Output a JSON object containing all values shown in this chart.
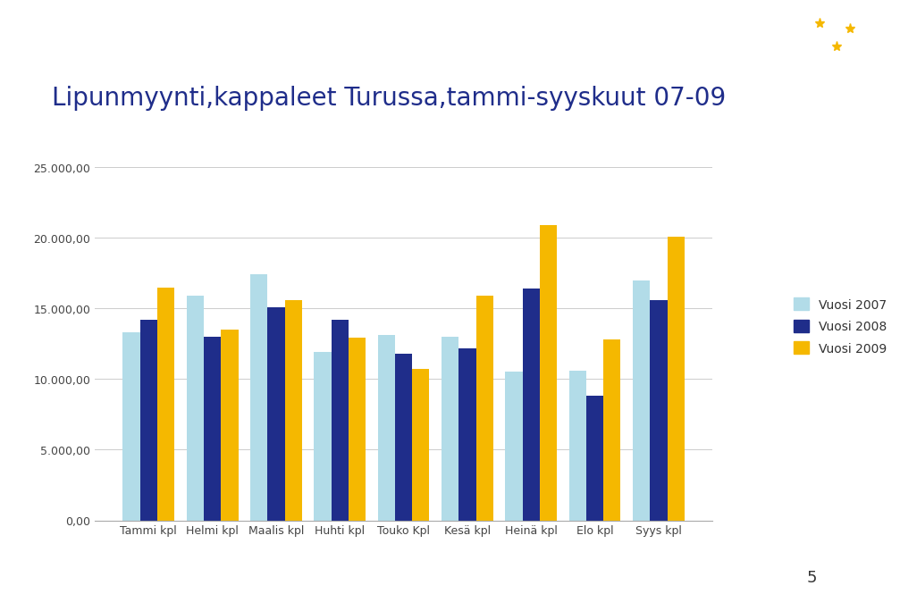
{
  "title": "Lipunmyynti,kappaleet Turussa,tammi-syyskuut 07-09",
  "categories": [
    "Tammi kpl",
    "Helmi kpl",
    "Maalis kpl",
    "Huhti kpl",
    "Touko Kpl",
    "Kesä kpl",
    "Heinä kpl",
    "Elo kpl",
    "Syys kpl"
  ],
  "vuosi2007": [
    13300,
    15900,
    17400,
    11900,
    13100,
    13000,
    10500,
    10600,
    17000
  ],
  "vuosi2008": [
    14200,
    13000,
    15100,
    14200,
    11800,
    12200,
    16400,
    8800,
    15600
  ],
  "vuosi2009": [
    16500,
    13500,
    15600,
    12900,
    10700,
    15900,
    20900,
    12800,
    20100
  ],
  "color2007": "#b2dce8",
  "color2008": "#1f2d8a",
  "color2009": "#f5b800",
  "banner_color": "#1f3387",
  "ylim": [
    0,
    25000
  ],
  "yticks": [
    0,
    5000,
    10000,
    15000,
    20000,
    25000
  ],
  "legend_labels": [
    "Vuosi 2007",
    "Vuosi 2008",
    "Vuosi 2009"
  ],
  "background_color": "#ffffff",
  "title_color": "#1f2d8a",
  "title_fontsize": 20,
  "page_number": "5"
}
